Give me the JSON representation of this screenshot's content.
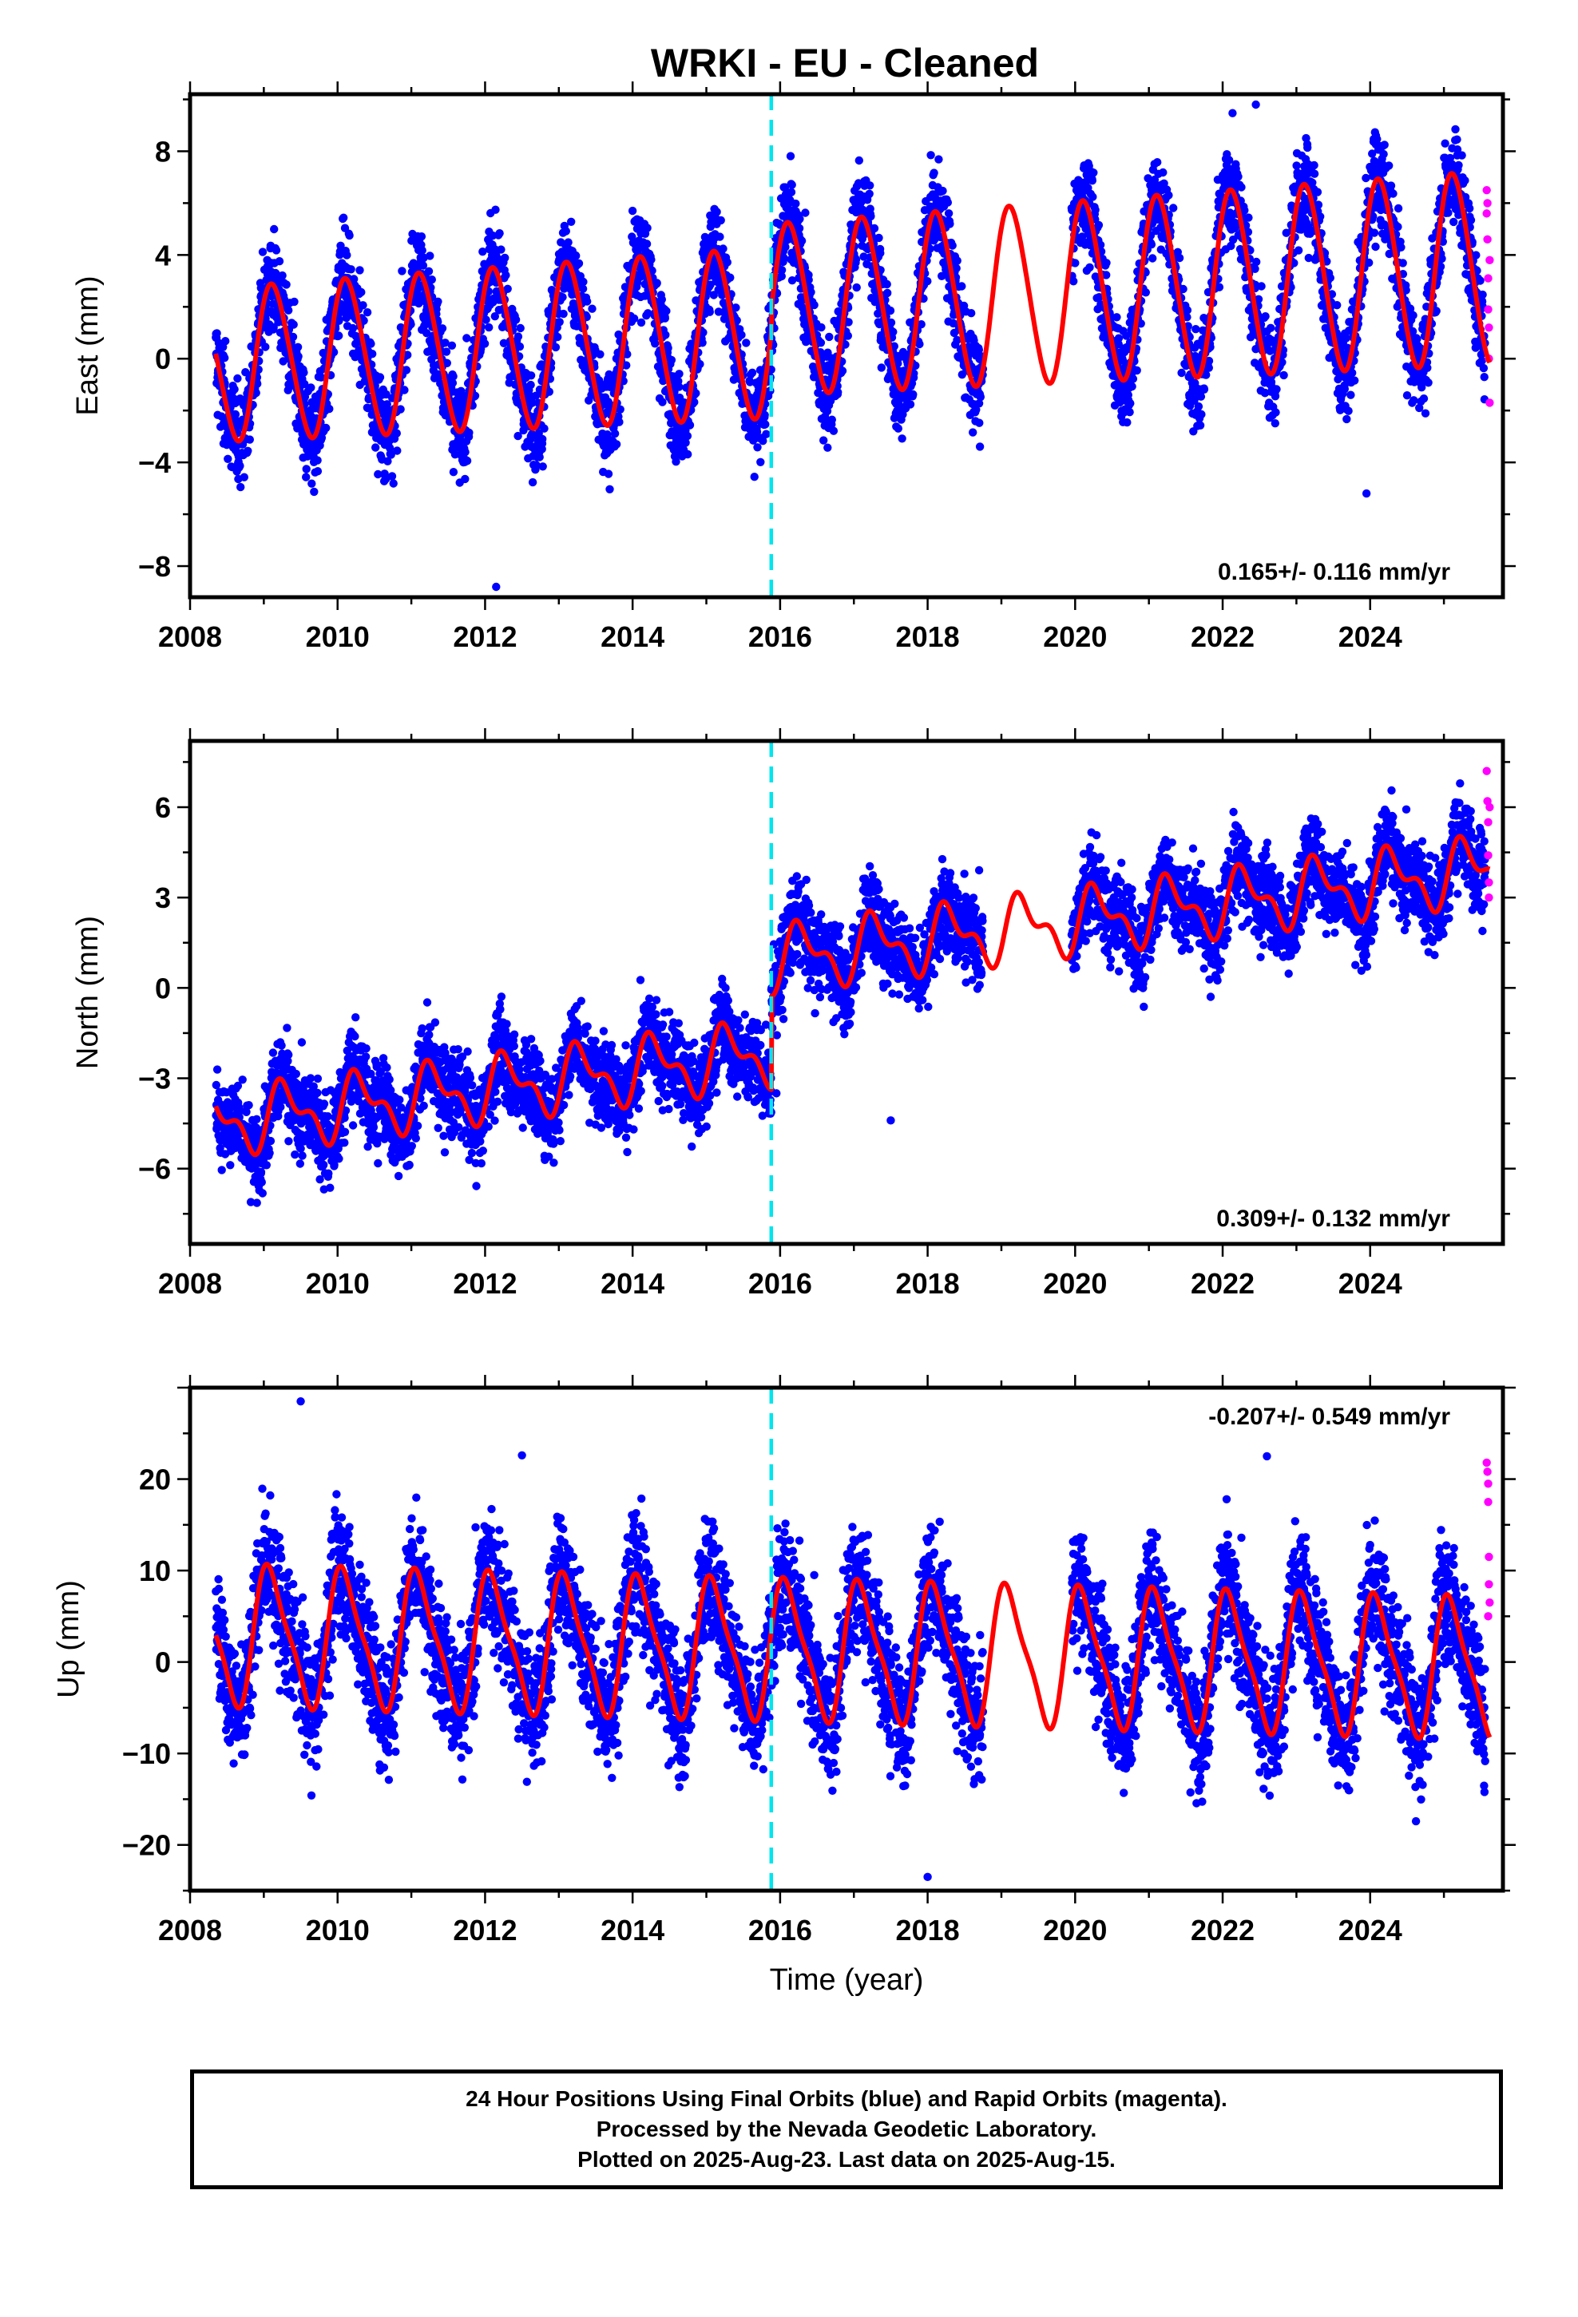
{
  "title": "WRKI  - EU - Cleaned",
  "chart_data": [
    {
      "type": "scatter",
      "component": "East",
      "ylabel": "East (mm)",
      "xlabel": "",
      "xlim": [
        2008,
        2025.8
      ],
      "ylim": [
        -9.2,
        10.2
      ],
      "x_ticks": [
        2008,
        2010,
        2012,
        2014,
        2016,
        2018,
        2020,
        2022,
        2024
      ],
      "x_tick_labels": [
        "2008",
        "2010",
        "2012",
        "2014",
        "2016",
        "2018",
        "2020",
        "2022",
        "2024"
      ],
      "y_ticks": [
        -8,
        -4,
        0,
        4,
        8
      ],
      "y_tick_labels": [
        "−8",
        "−4",
        "0",
        "4",
        "8"
      ],
      "rate_text": "0.165+/- 0.116 mm/yr",
      "rate_position": "bottom-right",
      "offset_line_year": 2015.88,
      "model": {
        "offset": -0.3,
        "trend": 0.165,
        "annual_amp": [
          2.9,
          3.7
        ],
        "annual_phase": 0.88,
        "semiannual_amp": 0.3,
        "step": 0.9
      },
      "scatter": {
        "noise": 1.35,
        "outliers": [
          [
            2012.15,
            -8.8
          ],
          [
            2022.45,
            9.8
          ],
          [
            2023.95,
            -5.2
          ]
        ]
      },
      "gap": [
        2018.75,
        2019.95
      ],
      "rapid_points": [
        [
          2025.58,
          6.5
        ],
        [
          2025.58,
          5.6
        ],
        [
          2025.59,
          4.6
        ],
        [
          2025.6,
          3.1
        ],
        [
          2025.6,
          1.9
        ],
        [
          2025.61,
          1.2
        ],
        [
          2025.61,
          0.0
        ],
        [
          2025.62,
          -1.7
        ],
        [
          2025.59,
          6.0
        ],
        [
          2025.62,
          3.8
        ]
      ],
      "series": [
        {
          "name": "Final Orbits",
          "color": "#0000ff"
        },
        {
          "name": "Rapid Orbits",
          "color": "#ff00ff"
        },
        {
          "name": "Model",
          "color": "#ff0000"
        }
      ]
    },
    {
      "type": "scatter",
      "component": "North",
      "ylabel": "North (mm)",
      "xlabel": "",
      "xlim": [
        2008,
        2025.8
      ],
      "ylim": [
        -8.5,
        8.2
      ],
      "x_ticks": [
        2008,
        2010,
        2012,
        2014,
        2016,
        2018,
        2020,
        2022,
        2024
      ],
      "x_tick_labels": [
        "2008",
        "2010",
        "2012",
        "2014",
        "2016",
        "2018",
        "2020",
        "2022",
        "2024"
      ],
      "y_ticks": [
        -6,
        -3,
        0,
        3,
        6
      ],
      "y_tick_labels": [
        "−6",
        "−3",
        "0",
        "3",
        "6"
      ],
      "rate_text": "0.309+/- 0.132 mm/yr",
      "rate_position": "bottom-right",
      "offset_line_year": 2015.88,
      "model": {
        "offset": -4.6,
        "trend": 0.309,
        "annual_amp": [
          0.9,
          0.9
        ],
        "annual_phase": 0.05,
        "semiannual_amp": 0.5,
        "step": 3.1
      },
      "scatter": {
        "noise": 1.05,
        "outliers": [
          [
            2017.5,
            -4.4
          ],
          [
            2015.95,
            -3.5
          ]
        ]
      },
      "gap": [
        2018.75,
        2019.95
      ],
      "rapid_points": [
        [
          2025.58,
          7.2
        ],
        [
          2025.59,
          6.2
        ],
        [
          2025.6,
          5.5
        ],
        [
          2025.6,
          4.4
        ],
        [
          2025.61,
          3.5
        ],
        [
          2025.61,
          3.0
        ],
        [
          2025.62,
          6.0
        ]
      ],
      "series": [
        {
          "name": "Final Orbits",
          "color": "#0000ff"
        },
        {
          "name": "Rapid Orbits",
          "color": "#ff00ff"
        },
        {
          "name": "Model",
          "color": "#ff0000"
        }
      ]
    },
    {
      "type": "scatter",
      "component": "Up",
      "ylabel": "Up (mm)",
      "xlabel": "Time (year)",
      "xlim": [
        2008,
        2025.8
      ],
      "ylim": [
        -25,
        30
      ],
      "x_ticks": [
        2008,
        2010,
        2012,
        2014,
        2016,
        2018,
        2020,
        2022,
        2024
      ],
      "x_tick_labels": [
        "2008",
        "2010",
        "2012",
        "2014",
        "2016",
        "2018",
        "2020",
        "2022",
        "2024"
      ],
      "y_ticks": [
        -20,
        -10,
        0,
        10,
        20
      ],
      "y_tick_labels": [
        "−20",
        "−10",
        "0",
        "10",
        "20"
      ],
      "rate_text": "-0.207+/- 0.549 mm/yr",
      "rate_position": "top-right",
      "offset_line_year": 2015.88,
      "model": {
        "offset": 3.0,
        "trend": -0.207,
        "annual_amp": [
          7.2,
          7.2
        ],
        "annual_phase": 0.85,
        "semiannual_amp": 1.8,
        "step": 0.0
      },
      "scatter": {
        "noise": 5.0,
        "outliers": [
          [
            2009.5,
            28.5
          ],
          [
            2022.6,
            22.5
          ],
          [
            2012.5,
            22.6
          ],
          [
            2018.0,
            -23.5
          ]
        ]
      },
      "gap": [
        2018.75,
        2019.95
      ],
      "rapid_points": [
        [
          2025.58,
          21.8
        ],
        [
          2025.59,
          20.8
        ],
        [
          2025.6,
          19.5
        ],
        [
          2025.6,
          17.5
        ],
        [
          2025.61,
          11.5
        ],
        [
          2025.61,
          8.5
        ],
        [
          2025.62,
          6.5
        ],
        [
          2025.6,
          5.0
        ]
      ],
      "series": [
        {
          "name": "Final Orbits",
          "color": "#0000ff"
        },
        {
          "name": "Rapid Orbits",
          "color": "#ff00ff"
        },
        {
          "name": "Model",
          "color": "#ff0000"
        }
      ]
    }
  ],
  "footer": {
    "line1": "24 Hour Positions Using Final Orbits (blue) and Rapid Orbits (magenta).",
    "line2": "Processed by the Nevada Geodetic Laboratory.",
    "line3": "Plotted on 2025-Aug-23. Last data on 2025-Aug-15."
  },
  "colors": {
    "final": "#0000ff",
    "rapid": "#ff00ff",
    "model": "#ff0000",
    "offset": "#00e5ee",
    "axis": "#000000"
  }
}
